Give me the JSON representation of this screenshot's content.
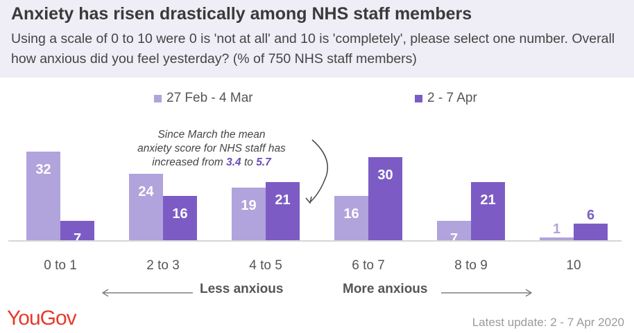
{
  "title": "Anxiety has risen drastically among NHS staff members",
  "subtitle": "Using a scale of 0 to 10 were 0 is 'not at all' and 10 is 'completely', please select one number. Overall how anxious did you feel yesterday? (% of 750 NHS staff members)",
  "annotation": {
    "line1": "Since March the mean",
    "line2": "anxiety score for NHS staff has",
    "line3_prefix": "increased from ",
    "value_from": "3.4",
    "line3_mid": " to ",
    "value_to": "5.7"
  },
  "axis_labels": {
    "left": "Less anxious",
    "right": "More anxious"
  },
  "logo": "YouGov",
  "update": "Latest update: 2 - 7 Apr 2020",
  "colors": {
    "series1": "#b1a3dc",
    "series2": "#7c5cc4",
    "header_bg": "#efedf5",
    "logo": "#e7392c"
  },
  "chart_data": {
    "type": "bar",
    "categories": [
      "0 to 1",
      "2 to 3",
      "4 to 5",
      "6 to 7",
      "8 to 9",
      "10"
    ],
    "series": [
      {
        "name": "27 Feb - 4 Mar",
        "values": [
          32,
          24,
          19,
          16,
          7,
          1
        ],
        "color": "#b1a3dc"
      },
      {
        "name": "2 - 7 Apr",
        "values": [
          7,
          16,
          21,
          30,
          21,
          6
        ],
        "color": "#7c5cc4"
      }
    ],
    "legend_position": "top",
    "grid": false
  }
}
